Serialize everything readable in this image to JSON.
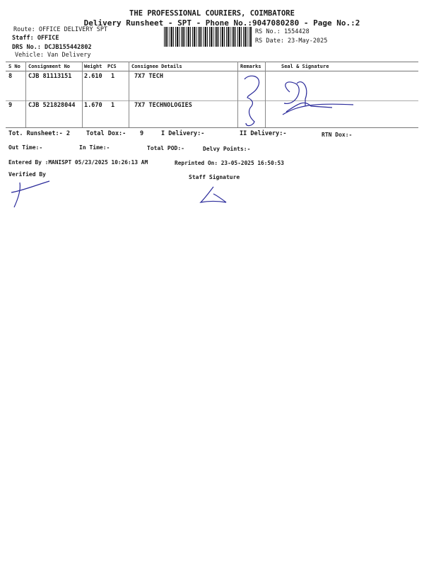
{
  "header": {
    "company": "THE PROFESSIONAL COURIERS, COIMBATORE",
    "subtitle": "Delivery Runsheet - SPT - Phone No.:9047080280 - Page No.:2",
    "route": "Route: OFFICE DELIVERY SPT",
    "staff": "Staff: OFFICE",
    "drs_no": "DRS No.: DCJB155442802",
    "vehicle": "Vehicle: Van Delivery",
    "rs_no": "RS No.: 1554428",
    "rs_date": "RS Date: 23-May-2025"
  },
  "table": {
    "columns": [
      "S No",
      "Consignment No",
      "Weight",
      "PCS",
      "Consignee Details",
      "Remarks",
      "Seal & Signature"
    ],
    "rows": [
      {
        "sno": "8",
        "consignment": "CJB 81113151",
        "weight": "2.610",
        "pcs": "1",
        "consignee": "7X7 TECH"
      },
      {
        "sno": "9",
        "consignment": "CJB 521828044",
        "weight": "1.670",
        "pcs": "1",
        "consignee": "7X7 TECHNOLOGIES"
      }
    ]
  },
  "summary": {
    "tot_runsheet": "Tot. Runsheet:- 2",
    "total_dox": "Total Dox:-",
    "total_dox_value": "9",
    "i_delivery": "I Delivery:-",
    "ii_delivery": "II Delivery:-",
    "rtn_dox": "RTN Dox:-",
    "out_time": "Out Time:-",
    "in_time": "In Time:-",
    "total_pod": "Total POD:-",
    "delvy_points": "Delvy Points:-",
    "entered_by": "Entered By :MANISPT 05/23/2025 10:26:13 AM",
    "reprinted_on": "Reprinted On: 23-05-2025 16:50:53",
    "verified_by": "Verified By",
    "staff_signature": "Staff Signature"
  },
  "colors": {
    "ink": "#2a2a9a"
  }
}
